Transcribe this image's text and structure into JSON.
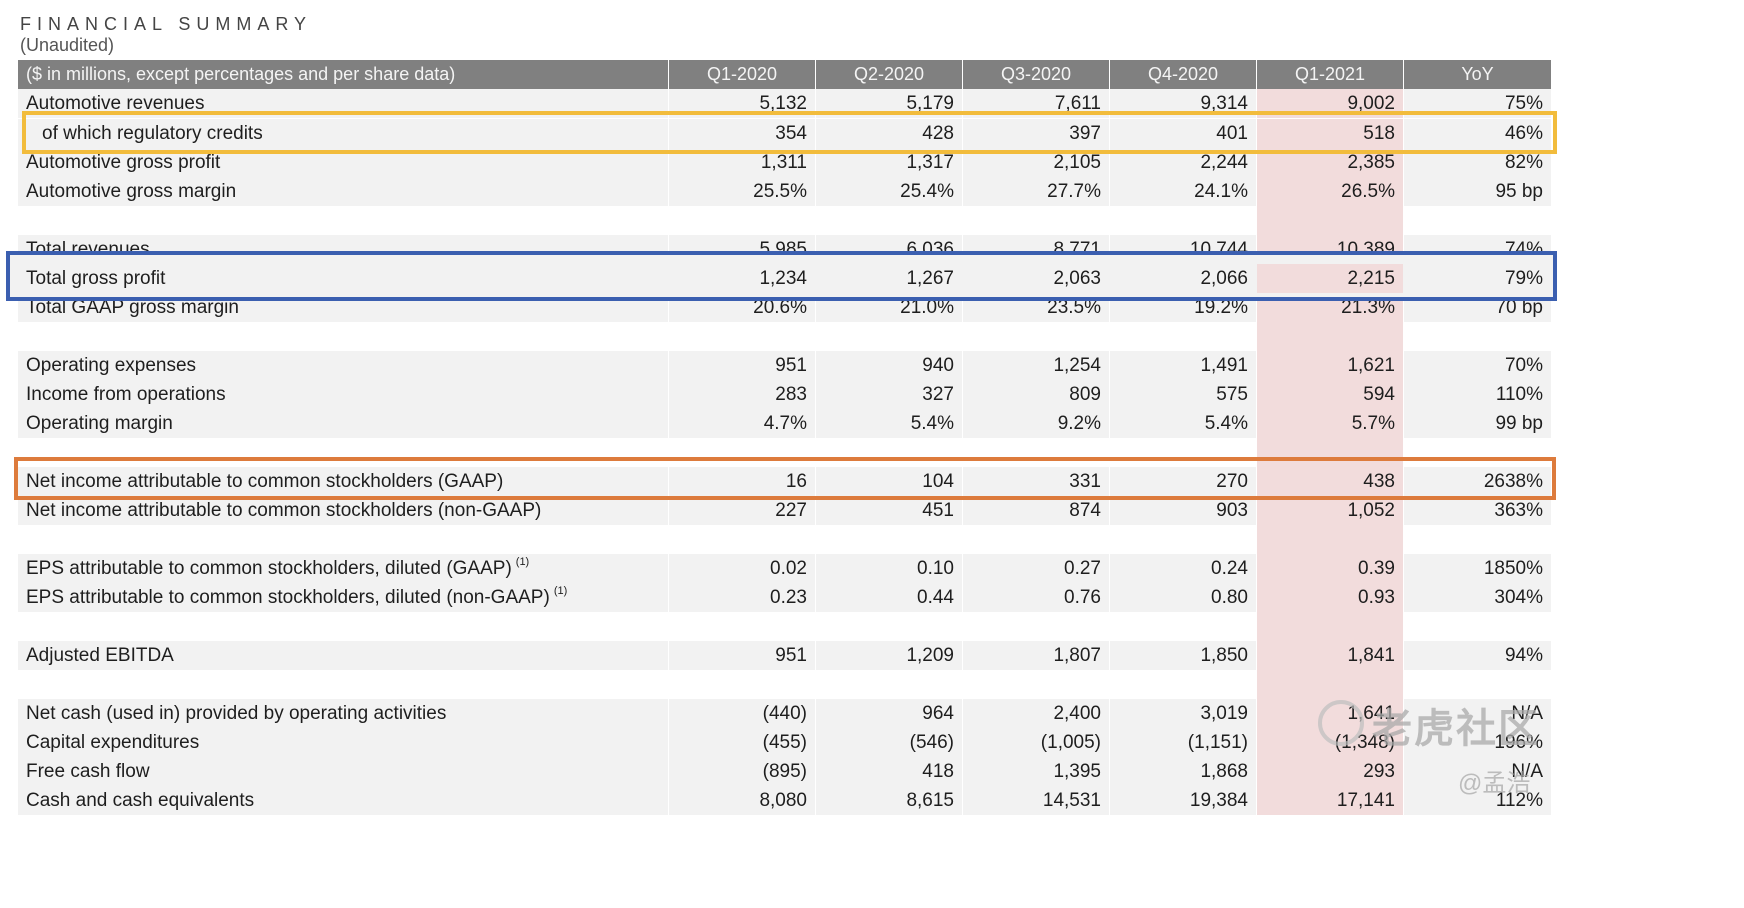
{
  "title": "FINANCIAL SUMMARY",
  "subtitle": "(Unaudited)",
  "header": {
    "label": "($ in millions, except percentages and per share data)",
    "columns": [
      "Q1-2020",
      "Q2-2020",
      "Q3-2020",
      "Q4-2020",
      "Q1-2021",
      "YoY"
    ]
  },
  "rows": [
    {
      "label": "Automotive revenues",
      "values": [
        "5,132",
        "5,179",
        "7,611",
        "9,314",
        "9,002",
        "75%"
      ]
    },
    {
      "label": "of which regulatory credits",
      "values": [
        "354",
        "428",
        "397",
        "401",
        "518",
        "46%"
      ]
    },
    {
      "label": "Automotive gross profit",
      "values": [
        "1,311",
        "1,317",
        "2,105",
        "2,244",
        "2,385",
        "82%"
      ]
    },
    {
      "label": "Automotive gross margin",
      "values": [
        "25.5%",
        "25.4%",
        "27.7%",
        "24.1%",
        "26.5%",
        "95 bp"
      ]
    },
    {
      "label": "Total revenues",
      "values": [
        "5,985",
        "6,036",
        "8,771",
        "10,744",
        "10,389",
        "74%"
      ]
    },
    {
      "label": "Total gross profit",
      "values": [
        "1,234",
        "1,267",
        "2,063",
        "2,066",
        "2,215",
        "79%"
      ]
    },
    {
      "label": "Total GAAP gross margin",
      "values": [
        "20.6%",
        "21.0%",
        "23.5%",
        "19.2%",
        "21.3%",
        "70 bp"
      ]
    },
    {
      "label": "Operating expenses",
      "values": [
        "951",
        "940",
        "1,254",
        "1,491",
        "1,621",
        "70%"
      ]
    },
    {
      "label": "Income from operations",
      "values": [
        "283",
        "327",
        "809",
        "575",
        "594",
        "110%"
      ]
    },
    {
      "label": "Operating margin",
      "values": [
        "4.7%",
        "5.4%",
        "9.2%",
        "5.4%",
        "5.7%",
        "99 bp"
      ]
    },
    {
      "label": "Net income attributable to common stockholders (GAAP)",
      "values": [
        "16",
        "104",
        "331",
        "270",
        "438",
        "2638%"
      ]
    },
    {
      "label": "Net income attributable to common stockholders (non-GAAP)",
      "values": [
        "227",
        "451",
        "874",
        "903",
        "1,052",
        "363%"
      ]
    },
    {
      "label": "EPS attributable to common stockholders, diluted (GAAP)",
      "footnote": "(1)",
      "values": [
        "0.02",
        "0.10",
        "0.27",
        "0.24",
        "0.39",
        "1850%"
      ]
    },
    {
      "label": "EPS attributable to common stockholders, diluted (non-GAAP)",
      "footnote": "(1)",
      "values": [
        "0.23",
        "0.44",
        "0.76",
        "0.80",
        "0.93",
        "304%"
      ]
    },
    {
      "label": "Adjusted EBITDA",
      "values": [
        "951",
        "1,209",
        "1,807",
        "1,850",
        "1,841",
        "94%"
      ]
    },
    {
      "label": "Net cash (used in) provided by operating activities",
      "values": [
        "(440)",
        "964",
        "2,400",
        "3,019",
        "1,641",
        "N/A"
      ]
    },
    {
      "label": "Capital expenditures",
      "values": [
        "(455)",
        "(546)",
        "(1,005)",
        "(1,151)",
        "(1,348)",
        "196%"
      ]
    },
    {
      "label": "Free cash flow",
      "values": [
        "(895)",
        "418",
        "1,395",
        "1,868",
        "293",
        "N/A"
      ]
    },
    {
      "label": "Cash and cash equivalents",
      "values": [
        "8,080",
        "8,615",
        "14,531",
        "19,384",
        "17,141",
        "112%"
      ]
    }
  ],
  "watermark": {
    "main": "老虎社区",
    "sub": "@孟浩"
  },
  "colors": {
    "header_bg": "#808080",
    "row_bg": "#f2f2f2",
    "highlight_col": "#f2dcdc",
    "box_yellow": "#f2bc3c",
    "box_blue": "#3b5fb0",
    "box_orange": "#dd7b3c"
  }
}
